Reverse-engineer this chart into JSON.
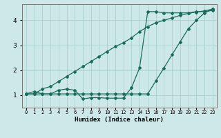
{
  "xlabel": "Humidex (Indice chaleur)",
  "bg_color": "#cce8e8",
  "line_color": "#1a6b5a",
  "grid_color": "#aacfcf",
  "x_values": [
    0,
    1,
    2,
    3,
    4,
    5,
    6,
    7,
    8,
    9,
    10,
    11,
    12,
    13,
    14,
    15,
    16,
    17,
    18,
    19,
    20,
    21,
    22,
    23
  ],
  "line1_y": [
    1.05,
    1.15,
    1.05,
    1.05,
    1.2,
    1.25,
    1.2,
    0.85,
    0.9,
    0.9,
    0.88,
    0.88,
    0.88,
    1.3,
    2.1,
    4.35,
    4.35,
    4.3,
    4.3,
    4.3,
    4.3,
    4.35,
    4.35,
    4.4
  ],
  "line2_y": [
    1.05,
    1.05,
    1.25,
    1.35,
    1.55,
    1.75,
    1.95,
    2.15,
    2.35,
    2.55,
    2.75,
    2.95,
    3.1,
    3.3,
    3.55,
    3.75,
    3.9,
    4.0,
    4.1,
    4.2,
    4.28,
    4.33,
    4.38,
    4.45
  ],
  "line3_y": [
    1.05,
    1.05,
    1.05,
    1.05,
    1.05,
    1.05,
    1.05,
    1.05,
    1.05,
    1.05,
    1.05,
    1.05,
    1.05,
    1.05,
    1.05,
    1.05,
    1.57,
    2.09,
    2.62,
    3.14,
    3.66,
    4.0,
    4.3,
    4.45
  ],
  "ylim": [
    0.5,
    4.65
  ],
  "xlim": [
    -0.5,
    23.5
  ],
  "yticks": [
    1,
    2,
    3,
    4
  ],
  "xtick_labels": [
    "0",
    "1",
    "2",
    "3",
    "4",
    "5",
    "6",
    "7",
    "8",
    "9",
    "10",
    "11",
    "12",
    "13",
    "14",
    "15",
    "16",
    "17",
    "18",
    "19",
    "20",
    "21",
    "22",
    "23"
  ]
}
